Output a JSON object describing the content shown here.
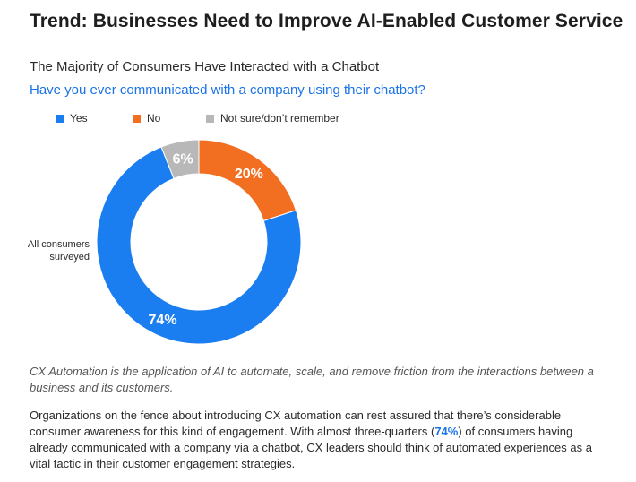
{
  "page": {
    "title": "Trend: Businesses Need to Improve AI-Enabled Customer Service",
    "note": "CX Automation is the application of AI to automate, scale, and remove friction from the interactions between a business and its customers.",
    "paragraph": {
      "before": "Organizations on the fence about introducing CX automation can rest assured that there’s considerable consumer awareness for this kind of engagement. With almost three-quarters (",
      "highlight": "74%",
      "after": ") of consumers having already communicated with a company via a chatbot, CX leaders should think of automated experiences as a vital tactic in their customer engagement strategies."
    }
  },
  "chart_data": {
    "type": "pie",
    "variant": "donut",
    "title": "The Majority of Consumers Have Interacted with a Chatbot",
    "subtitle": "Have you ever communicated with a company using their chatbot?",
    "row_label": "All consumers surveyed",
    "legend_position": "top-left",
    "slices": [
      {
        "label": "Yes",
        "value": 74,
        "display": "74%",
        "color": "#1a7df0"
      },
      {
        "label": "No",
        "value": 20,
        "display": "20%",
        "color": "#f26f21"
      },
      {
        "label": "Not sure/don’t remember",
        "value": 6,
        "display": "6%",
        "color": "#b8b8b8"
      }
    ]
  }
}
